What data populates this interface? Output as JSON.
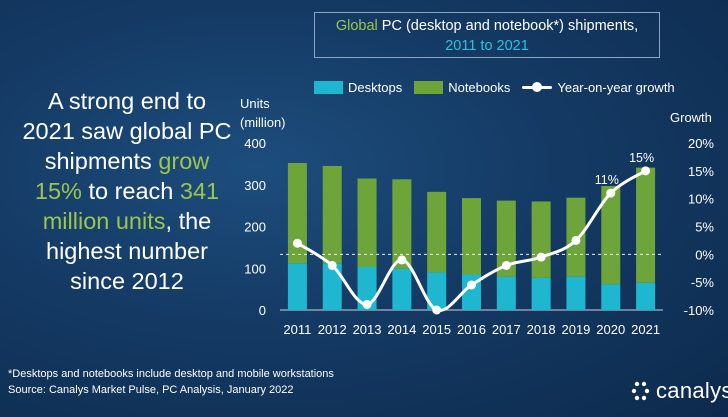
{
  "headline": {
    "part1": "A strong end to 2021 saw global PC shipments ",
    "grow_text": "grow 15%",
    "part2": " to reach ",
    "units_text": "341 million units",
    "part3": ", the highest number since 2012"
  },
  "title": {
    "word_global": "Global",
    "rest": " PC (desktop and notebook*) shipments,",
    "years": "2011 to 2021"
  },
  "legend": {
    "desktops": "Desktops",
    "notebooks": "Notebooks",
    "growth": "Year-on-year growth"
  },
  "axes": {
    "left_label_line1": "Units",
    "left_label_line2": "(million)",
    "right_label": "Growth"
  },
  "colors": {
    "desktops": "#1fb7cf",
    "notebooks": "#6ea53a",
    "line": "#ffffff",
    "accent_green": "#9bc64b",
    "accent_cyan": "#2ec1e0"
  },
  "chart_data": {
    "type": "bar",
    "stacked": true,
    "categories": [
      "2011",
      "2012",
      "2013",
      "2014",
      "2015",
      "2016",
      "2017",
      "2018",
      "2019",
      "2020",
      "2021"
    ],
    "series": [
      {
        "name": "Desktops",
        "values": [
          112,
          111,
          103,
          99,
          90,
          85,
          80,
          77,
          80,
          62,
          65
        ]
      },
      {
        "name": "Notebooks",
        "values": [
          240,
          234,
          212,
          214,
          193,
          183,
          182,
          183,
          189,
          235,
          276
        ]
      },
      {
        "name": "Year-on-year growth",
        "axis": "right",
        "values_pct": [
          2,
          -2,
          -9,
          -1,
          -10,
          -5.5,
          -2,
          -0.5,
          2.5,
          11,
          15
        ]
      }
    ],
    "ylim_left": [
      0,
      400
    ],
    "yticks_left": [
      "0",
      "100",
      "200",
      "300",
      "400"
    ],
    "ylim_right_pct": [
      -10,
      20
    ],
    "yticks_right": [
      "-10%",
      "-5%",
      "0%",
      "5%",
      "10%",
      "15%",
      "20%"
    ],
    "data_labels": [
      {
        "category": "2020",
        "text": "11%"
      },
      {
        "category": "2021",
        "text": "15%"
      }
    ],
    "zero_growth_reference_line": "dashed"
  },
  "footer": {
    "footnote": "*Desktops and notebooks include desktop and mobile workstations",
    "source": "Source: Canalys Market Pulse, PC Analysis, January 2022",
    "brand": "canalys"
  }
}
